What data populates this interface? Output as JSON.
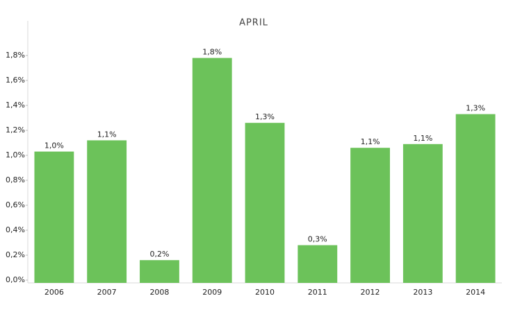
{
  "chart_data": {
    "type": "bar",
    "title": "APRIL",
    "categories": [
      "2006",
      "2007",
      "2008",
      "2009",
      "2010",
      "2011",
      "2012",
      "2013",
      "2014"
    ],
    "values": [
      1.03,
      1.12,
      0.16,
      1.78,
      1.26,
      0.28,
      1.06,
      1.09,
      1.33
    ],
    "value_labels": [
      "1,0%",
      "1,1%",
      "0,2%",
      "1,8%",
      "1,3%",
      "0,3%",
      "1,1%",
      "1,1%",
      "1,3%"
    ],
    "color": "#6cc25a",
    "ylim": [
      0,
      1.9
    ],
    "yticks": [
      {
        "value": 0,
        "label": "0,0%"
      },
      {
        "value": 0.2,
        "label": "0,2%"
      },
      {
        "value": 0.4,
        "label": "0,4%"
      },
      {
        "value": 0.6,
        "label": "0,6%"
      },
      {
        "value": 0.8,
        "label": "0,8%"
      },
      {
        "value": 1.0,
        "label": "1,0%"
      },
      {
        "value": 1.2,
        "label": "1,2%"
      },
      {
        "value": 1.4,
        "label": "1,4%"
      },
      {
        "value": 1.6,
        "label": "1,6%"
      },
      {
        "value": 1.8,
        "label": "1,8%"
      }
    ],
    "grid": false
  }
}
